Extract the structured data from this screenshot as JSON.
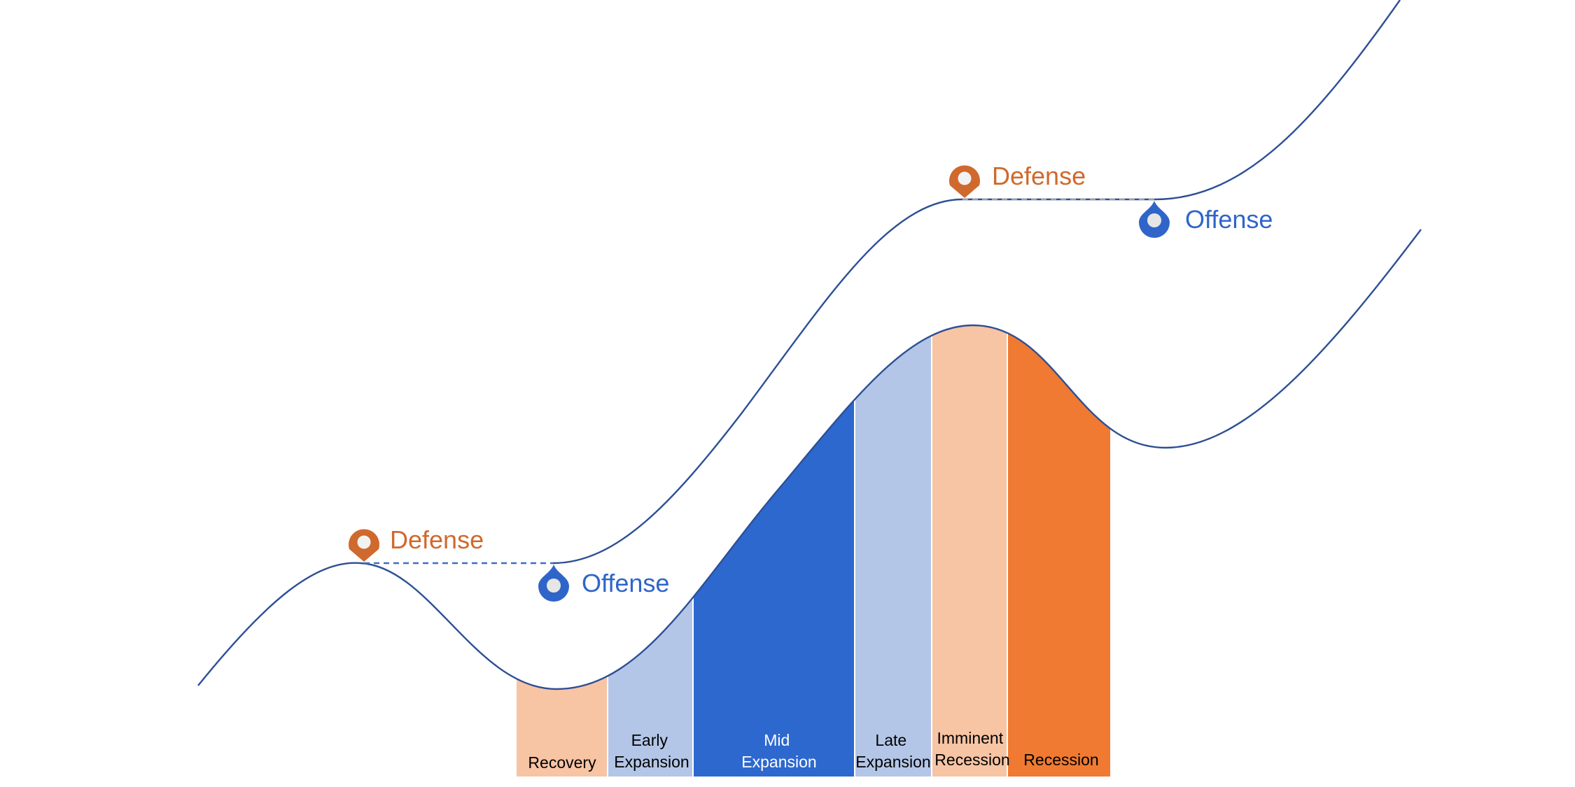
{
  "colors": {
    "curve": "#2D4F95",
    "defense": "#D0692D",
    "offense": "#2F65C9",
    "phase_light_orange": "#F7C4A4",
    "phase_light_blue": "#B4C6E7",
    "phase_blue": "#2D68CF",
    "phase_orange": "#F07A31",
    "dash_upper": "#A0A0A0",
    "dash_lower": "#3E6FC4"
  },
  "markers": [
    {
      "kind": "defense",
      "label": "Defense",
      "icon": "map-pin-icon"
    },
    {
      "kind": "offense",
      "label": "Offense",
      "icon": "drop-pin-icon"
    },
    {
      "kind": "defense",
      "label": "Defense",
      "icon": "map-pin-icon"
    },
    {
      "kind": "offense",
      "label": "Offense",
      "icon": "drop-pin-icon"
    }
  ],
  "phases": [
    {
      "lines": [
        "Recovery"
      ],
      "text_color": "#000000"
    },
    {
      "lines": [
        "Early",
        "Expansion"
      ],
      "text_color": "#000000"
    },
    {
      "lines": [
        "Mid",
        "Expansion"
      ],
      "text_color": "#ffffff"
    },
    {
      "lines": [
        "Late",
        "Expansion"
      ],
      "text_color": "#000000"
    },
    {
      "lines": [
        "Imminent",
        "Recession"
      ],
      "text_color": "#000000"
    },
    {
      "lines": [
        "Recession"
      ],
      "text_color": "#000000"
    }
  ]
}
